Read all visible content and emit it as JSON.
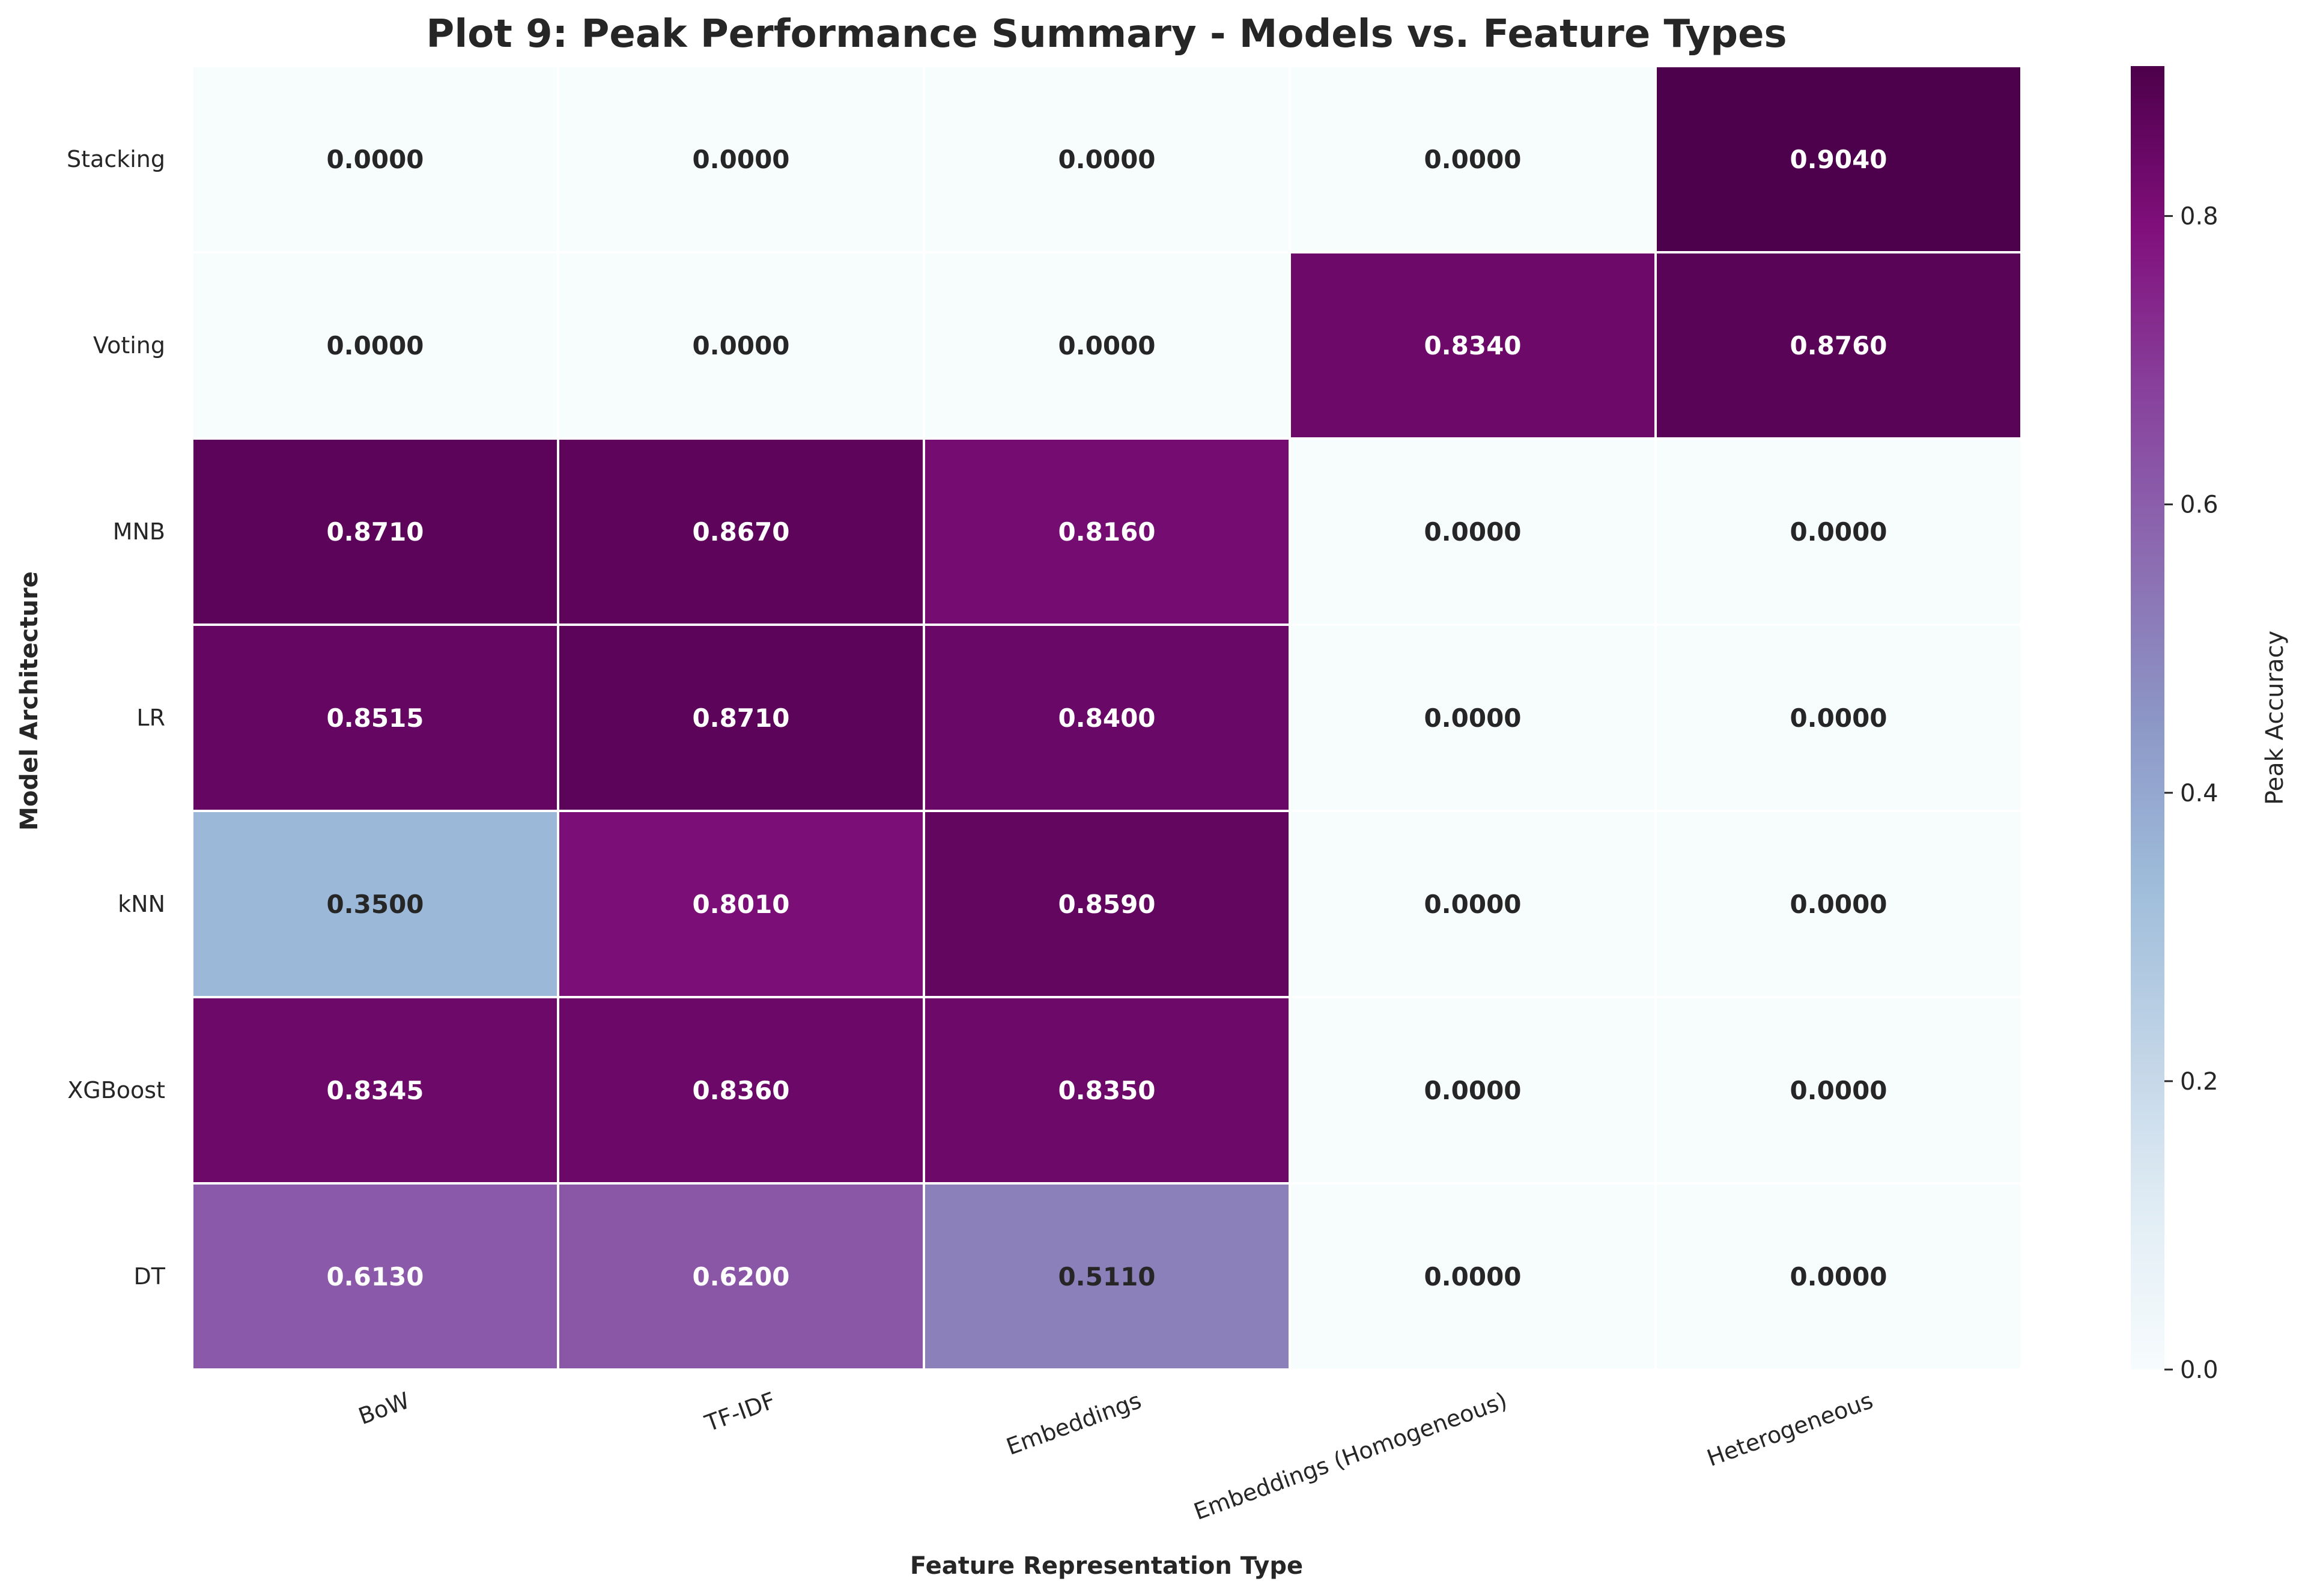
{
  "chart_data": {
    "type": "heatmap",
    "title": "Plot 9: Peak Performance Summary - Models vs. Feature Types",
    "xlabel": "Feature Representation Type",
    "ylabel": "Model Architecture",
    "x_categories": [
      "BoW",
      "TF-IDF",
      "Embeddings",
      "Embeddings (Homogeneous)",
      "Heterogeneous"
    ],
    "y_categories": [
      "Stacking",
      "Voting",
      "MNB",
      "LR",
      "kNN",
      "XGBoost",
      "DT"
    ],
    "values": [
      [
        0.0,
        0.0,
        0.0,
        0.0,
        0.904
      ],
      [
        0.0,
        0.0,
        0.0,
        0.834,
        0.876
      ],
      [
        0.871,
        0.867,
        0.816,
        0.0,
        0.0
      ],
      [
        0.8515,
        0.871,
        0.84,
        0.0,
        0.0
      ],
      [
        0.35,
        0.801,
        0.859,
        0.0,
        0.0
      ],
      [
        0.8345,
        0.836,
        0.835,
        0.0,
        0.0
      ],
      [
        0.613,
        0.62,
        0.511,
        0.0,
        0.0
      ]
    ],
    "value_labels": [
      [
        "0.0000",
        "0.0000",
        "0.0000",
        "0.0000",
        "0.9040"
      ],
      [
        "0.0000",
        "0.0000",
        "0.0000",
        "0.8340",
        "0.8760"
      ],
      [
        "0.8710",
        "0.8670",
        "0.8160",
        "0.0000",
        "0.0000"
      ],
      [
        "0.8515",
        "0.8710",
        "0.8400",
        "0.0000",
        "0.0000"
      ],
      [
        "0.3500",
        "0.8010",
        "0.8590",
        "0.0000",
        "0.0000"
      ],
      [
        "0.8345",
        "0.8360",
        "0.8350",
        "0.0000",
        "0.0000"
      ],
      [
        "0.6130",
        "0.6200",
        "0.5110",
        "0.0000",
        "0.0000"
      ]
    ],
    "colorbar": {
      "label": "Peak Accuracy",
      "range": [
        0.0,
        0.904
      ],
      "ticks": [
        0.0,
        0.2,
        0.4,
        0.6,
        0.8
      ],
      "tick_labels": [
        "0.0",
        "0.2",
        "0.4",
        "0.6",
        "0.8"
      ],
      "colormap": "BuPu",
      "colors": [
        "#f7fcfd",
        "#e0ecf4",
        "#bfd3e6",
        "#9ebcda",
        "#8c96c6",
        "#8c6bb1",
        "#88419d",
        "#810f7c",
        "#4d004b"
      ]
    },
    "grid": true,
    "cell_border_color": "#ffffff"
  }
}
